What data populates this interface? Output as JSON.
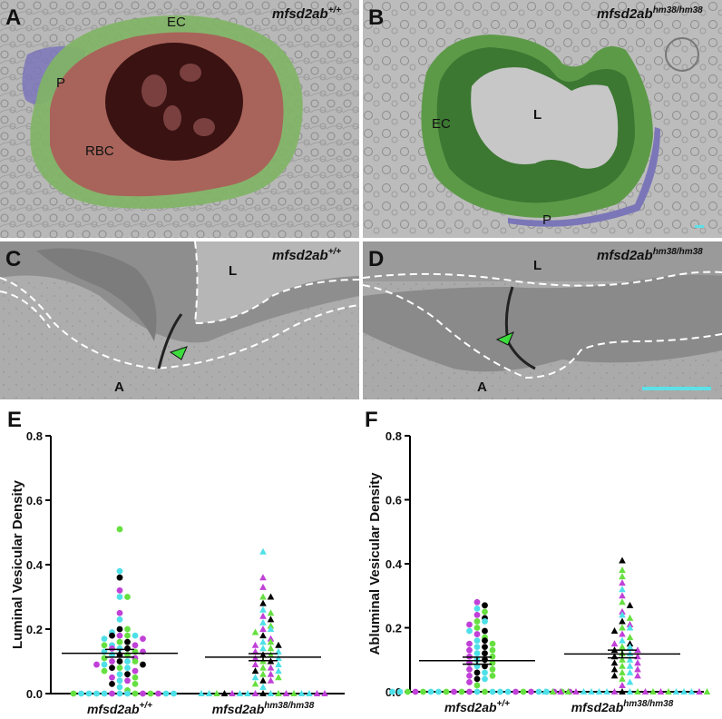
{
  "panels": {
    "A": {
      "letter": "A",
      "genotype": "mfsd2ab",
      "genotype_sup": "+/+",
      "labels": {
        "ec": "EC",
        "p": "P",
        "rbc": "RBC"
      }
    },
    "B": {
      "letter": "B",
      "genotype": "mfsd2ab",
      "genotype_sup": "hm38/hm38",
      "labels": {
        "ec": "EC",
        "l": "L",
        "p": "P"
      }
    },
    "C": {
      "letter": "C",
      "genotype": "mfsd2ab",
      "genotype_sup": "+/+",
      "labels": {
        "l": "L",
        "a": "A"
      }
    },
    "D": {
      "letter": "D",
      "genotype": "mfsd2ab",
      "genotype_sup": "hm38/hm38",
      "labels": {
        "l": "L",
        "a": "A"
      }
    }
  },
  "colors": {
    "rbc": "#a8645a",
    "endothelial": "#7fb564",
    "pericyte": "#7b76b8",
    "arrowhead": "#3ddc3d",
    "scalebar": "#5ee0e8",
    "dot_cyan": "#4ee0e8",
    "dot_magenta": "#c040d8",
    "dot_green": "#66e040",
    "dot_black": "#000000"
  },
  "chart_data": [
    {
      "type": "scatter",
      "panel": "E",
      "ylabel": "Luminal Vesicular Density",
      "ylim": [
        0,
        0.8
      ],
      "yticks": [
        "0.0",
        "0.2",
        "0.4",
        "0.6",
        "0.8"
      ],
      "categories": [
        {
          "main": "mfsd2ab",
          "sup": "+/+"
        },
        {
          "main": "mfsd2ab",
          "sup": "hm38/hm38"
        }
      ],
      "groups": [
        {
          "marker": "circle",
          "mean": 0.125,
          "sem": 0.012,
          "values": [
            0.51,
            0.38,
            0.36,
            0.32,
            0.3,
            0.3,
            0.25,
            0.23,
            0.2,
            0.2,
            0.19,
            0.18,
            0.18,
            0.18,
            0.18,
            0.17,
            0.17,
            0.16,
            0.16,
            0.15,
            0.15,
            0.15,
            0.14,
            0.14,
            0.14,
            0.13,
            0.13,
            0.13,
            0.12,
            0.12,
            0.12,
            0.11,
            0.11,
            0.1,
            0.1,
            0.1,
            0.1,
            0.09,
            0.09,
            0.09,
            0.08,
            0.08,
            0.08,
            0.07,
            0.07,
            0.06,
            0.06,
            0.05,
            0.05,
            0.04,
            0.04,
            0.03,
            0.03,
            0.02,
            0.01,
            0,
            0,
            0,
            0,
            0,
            0,
            0,
            0,
            0,
            0,
            0,
            0,
            0,
            0
          ],
          "colors": [
            "g",
            "c",
            "k",
            "m",
            "c",
            "g",
            "m",
            "c",
            "k",
            "g",
            "c",
            "m",
            "g",
            "k",
            "c",
            "c",
            "m",
            "g",
            "k",
            "c",
            "m",
            "g",
            "c",
            "k",
            "m",
            "g",
            "c",
            "m",
            "k",
            "g",
            "c",
            "m",
            "g",
            "k",
            "c",
            "m",
            "g",
            "c",
            "k",
            "m",
            "g",
            "c",
            "k",
            "m",
            "g",
            "c",
            "k",
            "m",
            "g",
            "c",
            "m",
            "k",
            "g",
            "c",
            "g",
            "c",
            "c",
            "m",
            "g",
            "c",
            "m",
            "c",
            "g",
            "c",
            "m",
            "c",
            "c",
            "g",
            "c"
          ]
        },
        {
          "marker": "triangle",
          "mean": 0.113,
          "sem": 0.011,
          "values": [
            0.44,
            0.36,
            0.33,
            0.3,
            0.3,
            0.28,
            0.26,
            0.25,
            0.24,
            0.23,
            0.22,
            0.21,
            0.2,
            0.2,
            0.19,
            0.18,
            0.17,
            0.16,
            0.16,
            0.15,
            0.15,
            0.14,
            0.14,
            0.13,
            0.13,
            0.12,
            0.12,
            0.11,
            0.11,
            0.1,
            0.1,
            0.09,
            0.09,
            0.08,
            0.08,
            0.07,
            0.07,
            0.06,
            0.06,
            0.05,
            0.05,
            0.04,
            0.04,
            0.03,
            0.02,
            0,
            0,
            0,
            0,
            0,
            0,
            0,
            0,
            0,
            0,
            0,
            0,
            0,
            0,
            0,
            0,
            0
          ],
          "colors": [
            "c",
            "m",
            "m",
            "g",
            "k",
            "k",
            "c",
            "g",
            "m",
            "k",
            "c",
            "g",
            "m",
            "c",
            "g",
            "k",
            "m",
            "c",
            "g",
            "m",
            "k",
            "c",
            "g",
            "m",
            "c",
            "k",
            "g",
            "m",
            "c",
            "g",
            "k",
            "m",
            "c",
            "g",
            "m",
            "k",
            "c",
            "g",
            "m",
            "c",
            "g",
            "k",
            "m",
            "g",
            "c",
            "k",
            "c",
            "m",
            "g",
            "c",
            "m",
            "c",
            "g",
            "m",
            "c",
            "k",
            "c",
            "g",
            "m",
            "c",
            "m",
            "c"
          ]
        }
      ]
    },
    {
      "type": "scatter",
      "panel": "F",
      "ylabel": "Abluminal Vesicular Density",
      "ylim": [
        0,
        0.8
      ],
      "yticks": [
        "0.0",
        "0.2",
        "0.4",
        "0.6",
        "0.8"
      ],
      "categories": [
        {
          "main": "mfsd2ab",
          "sup": "+/+"
        },
        {
          "main": "mfsd2ab",
          "sup": "hm38/hm38"
        }
      ],
      "groups": [
        {
          "marker": "circle",
          "mean": 0.097,
          "sem": 0.011,
          "values": [
            0.28,
            0.27,
            0.26,
            0.25,
            0.24,
            0.23,
            0.22,
            0.22,
            0.21,
            0.2,
            0.19,
            0.19,
            0.18,
            0.17,
            0.16,
            0.16,
            0.15,
            0.15,
            0.14,
            0.14,
            0.13,
            0.13,
            0.12,
            0.12,
            0.11,
            0.11,
            0.1,
            0.1,
            0.09,
            0.09,
            0.08,
            0.08,
            0.07,
            0.07,
            0.06,
            0.06,
            0.05,
            0.05,
            0.04,
            0.04,
            0.03,
            0.02,
            0,
            0,
            0,
            0,
            0,
            0,
            0,
            0,
            0,
            0,
            0,
            0,
            0,
            0,
            0,
            0,
            0,
            0,
            0,
            0,
            0,
            0,
            0,
            0
          ],
          "colors": [
            "m",
            "k",
            "c",
            "g",
            "m",
            "k",
            "g",
            "c",
            "m",
            "g",
            "k",
            "c",
            "m",
            "g",
            "c",
            "k",
            "m",
            "g",
            "c",
            "k",
            "m",
            "g",
            "c",
            "k",
            "m",
            "g",
            "c",
            "k",
            "m",
            "g",
            "c",
            "k",
            "m",
            "g",
            "k",
            "c",
            "m",
            "g",
            "k",
            "c",
            "m",
            "g",
            "c",
            "g",
            "m",
            "c",
            "g",
            "c",
            "m",
            "c",
            "g",
            "m",
            "c",
            "g",
            "c",
            "m",
            "g",
            "c",
            "m",
            "c",
            "g",
            "m",
            "c",
            "g",
            "c",
            "m"
          ]
        },
        {
          "marker": "triangle",
          "mean": 0.118,
          "sem": 0.012,
          "values": [
            0.41,
            0.38,
            0.36,
            0.34,
            0.32,
            0.3,
            0.28,
            0.27,
            0.25,
            0.24,
            0.23,
            0.22,
            0.21,
            0.2,
            0.2,
            0.19,
            0.18,
            0.17,
            0.16,
            0.15,
            0.15,
            0.14,
            0.14,
            0.13,
            0.13,
            0.12,
            0.12,
            0.11,
            0.11,
            0.1,
            0.1,
            0.09,
            0.09,
            0.08,
            0.08,
            0.07,
            0.07,
            0.06,
            0.06,
            0.05,
            0.05,
            0.04,
            0.03,
            0.02,
            0,
            0,
            0,
            0,
            0,
            0,
            0,
            0,
            0,
            0,
            0,
            0,
            0,
            0,
            0,
            0,
            0,
            0,
            0,
            0,
            0,
            0
          ],
          "colors": [
            "k",
            "g",
            "g",
            "m",
            "c",
            "m",
            "g",
            "k",
            "m",
            "c",
            "g",
            "k",
            "m",
            "g",
            "c",
            "k",
            "m",
            "g",
            "c",
            "k",
            "m",
            "g",
            "c",
            "k",
            "m",
            "g",
            "c",
            "k",
            "m",
            "g",
            "c",
            "k",
            "m",
            "g",
            "c",
            "k",
            "m",
            "g",
            "c",
            "k",
            "m",
            "g",
            "c",
            "m",
            "k",
            "c",
            "m",
            "g",
            "c",
            "m",
            "c",
            "g",
            "c",
            "m",
            "c",
            "g",
            "m",
            "c",
            "g",
            "c",
            "m",
            "c",
            "g",
            "m",
            "c",
            "g"
          ]
        }
      ]
    }
  ]
}
